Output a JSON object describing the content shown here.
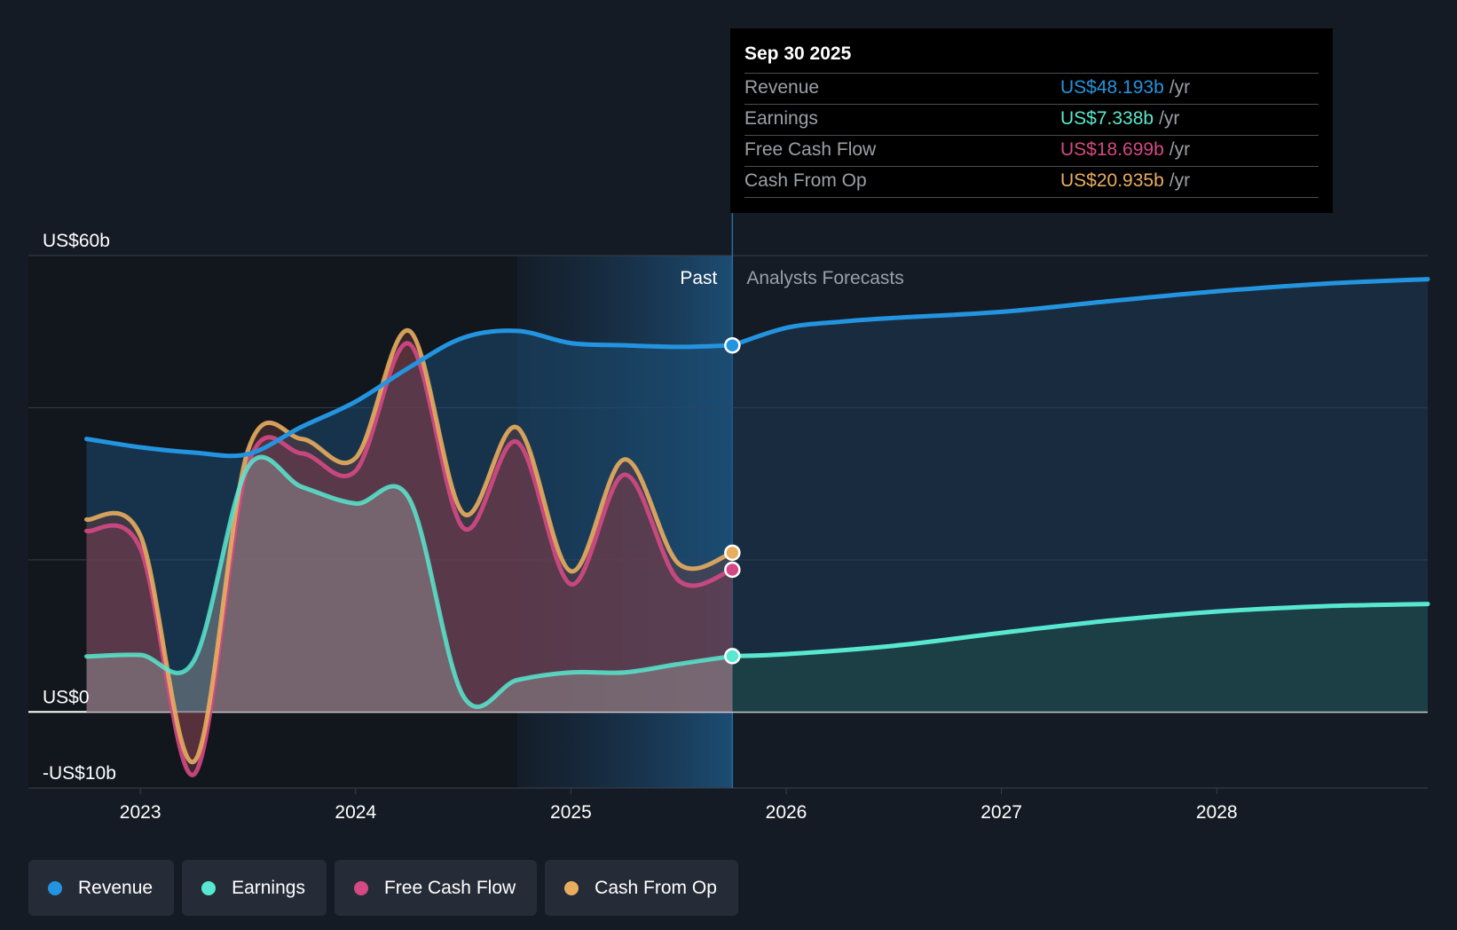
{
  "chart_data": {
    "type": "line",
    "title": "Revenue, Earnings, Free Cash Flow and Cash From Operations",
    "y_unit": "US$ billions",
    "ylim": [
      -10,
      60
    ],
    "y_tick_labels": [
      {
        "value": 60,
        "label": "US$60b"
      },
      {
        "value": 0,
        "label": "US$0"
      },
      {
        "value": -10,
        "label": "-US$10b"
      }
    ],
    "y_gridlines": [
      60,
      40,
      20,
      0
    ],
    "xlim": [
      2022.48,
      2028.98
    ],
    "x_ticks": [
      {
        "value": 2023.0,
        "label": "2023"
      },
      {
        "value": 2024.0,
        "label": "2024"
      },
      {
        "value": 2025.0,
        "label": "2025"
      },
      {
        "value": 2026.0,
        "label": "2026"
      },
      {
        "value": 2027.0,
        "label": "2027"
      },
      {
        "value": 2028.0,
        "label": "2028"
      }
    ],
    "divider_x": 2025.75,
    "shaded_region_start": 2024.75,
    "past_label": "Past",
    "forecast_label": "Analysts Forecasts",
    "series": [
      {
        "name": "Revenue",
        "color": "#2394df",
        "past": [
          [
            2022.75,
            35.9
          ],
          [
            2023.0,
            34.8
          ],
          [
            2023.25,
            34.1
          ],
          [
            2023.5,
            33.9
          ],
          [
            2023.75,
            37.5
          ],
          [
            2024.0,
            40.8
          ],
          [
            2024.25,
            45.3
          ],
          [
            2024.5,
            49.2
          ],
          [
            2024.75,
            50.1
          ],
          [
            2025.0,
            48.5
          ],
          [
            2025.25,
            48.2
          ],
          [
            2025.5,
            48.0
          ],
          [
            2025.75,
            48.193
          ]
        ],
        "forecast": [
          [
            2025.75,
            48.193
          ],
          [
            2026.0,
            50.5
          ],
          [
            2026.25,
            51.3
          ],
          [
            2026.5,
            51.8
          ],
          [
            2027.0,
            52.6
          ],
          [
            2027.5,
            54.0
          ],
          [
            2028.0,
            55.3
          ],
          [
            2028.5,
            56.3
          ],
          [
            2028.98,
            56.9
          ]
        ],
        "marker": 48.193
      },
      {
        "name": "Earnings",
        "color": "#58e8cf",
        "past": [
          [
            2022.75,
            7.3
          ],
          [
            2023.0,
            7.5
          ],
          [
            2023.25,
            6.8
          ],
          [
            2023.5,
            32.2
          ],
          [
            2023.75,
            29.6
          ],
          [
            2024.0,
            27.4
          ],
          [
            2024.25,
            28.0
          ],
          [
            2024.5,
            2.1
          ],
          [
            2024.75,
            4.2
          ],
          [
            2025.0,
            5.2
          ],
          [
            2025.25,
            5.2
          ],
          [
            2025.5,
            6.3
          ],
          [
            2025.75,
            7.338
          ]
        ],
        "forecast": [
          [
            2025.75,
            7.338
          ],
          [
            2026.0,
            7.6
          ],
          [
            2026.5,
            8.7
          ],
          [
            2027.0,
            10.4
          ],
          [
            2027.5,
            12.0
          ],
          [
            2028.0,
            13.2
          ],
          [
            2028.5,
            13.9
          ],
          [
            2028.98,
            14.2
          ]
        ],
        "marker": 7.338
      },
      {
        "name": "Free Cash Flow",
        "color": "#d44984",
        "past": [
          [
            2022.75,
            23.8
          ],
          [
            2023.0,
            21.5
          ],
          [
            2023.25,
            -8.2
          ],
          [
            2023.5,
            32.5
          ],
          [
            2023.75,
            34.0
          ],
          [
            2024.0,
            31.7
          ],
          [
            2024.25,
            48.4
          ],
          [
            2024.5,
            24.2
          ],
          [
            2024.75,
            35.5
          ],
          [
            2025.0,
            16.8
          ],
          [
            2025.25,
            31.2
          ],
          [
            2025.5,
            17.3
          ],
          [
            2025.75,
            18.699
          ]
        ],
        "marker": 18.699
      },
      {
        "name": "Cash From Op",
        "color": "#e8ad5f",
        "past": [
          [
            2022.75,
            25.3
          ],
          [
            2023.0,
            23.2
          ],
          [
            2023.25,
            -6.5
          ],
          [
            2023.5,
            34.4
          ],
          [
            2023.75,
            35.9
          ],
          [
            2024.0,
            33.4
          ],
          [
            2024.25,
            50.1
          ],
          [
            2024.5,
            26.1
          ],
          [
            2024.75,
            37.4
          ],
          [
            2025.0,
            18.5
          ],
          [
            2025.25,
            33.2
          ],
          [
            2025.5,
            19.5
          ],
          [
            2025.75,
            20.935
          ]
        ],
        "marker": 20.935
      }
    ]
  },
  "tooltip": {
    "date": "Sep 30 2025",
    "rows": [
      {
        "name": "Revenue",
        "value": "US$48.193b",
        "unit": "/yr",
        "color": "#2394df"
      },
      {
        "name": "Earnings",
        "value": "US$7.338b",
        "unit": "/yr",
        "color": "#58e8cf"
      },
      {
        "name": "Free Cash Flow",
        "value": "US$18.699b",
        "unit": "/yr",
        "color": "#d44984"
      },
      {
        "name": "Cash From Op",
        "value": "US$20.935b",
        "unit": "/yr",
        "color": "#e8ad5f"
      }
    ]
  },
  "legend": [
    {
      "label": "Revenue",
      "color": "#2394df"
    },
    {
      "label": "Earnings",
      "color": "#58e8cf"
    },
    {
      "label": "Free Cash Flow",
      "color": "#d44984"
    },
    {
      "label": "Cash From Op",
      "color": "#e8ad5f"
    }
  ]
}
